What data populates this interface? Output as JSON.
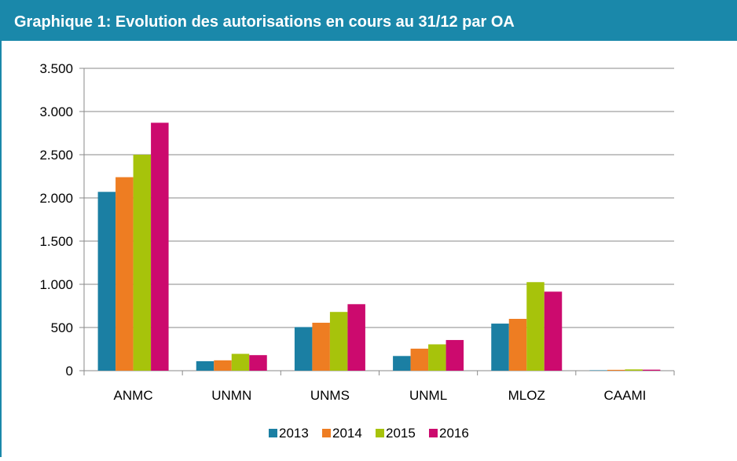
{
  "chart_data": {
    "type": "bar",
    "title": "Graphique 1: Evolution des autorisations en cours au 31/12 par OA",
    "categories": [
      "ANMC",
      "UNMN",
      "UNMS",
      "UNML",
      "MLOZ",
      "CAAMI"
    ],
    "series": [
      {
        "name": "2013",
        "color": "#1b7fa3",
        "values": [
          2070,
          110,
          505,
          170,
          545,
          5
        ]
      },
      {
        "name": "2014",
        "color": "#ee7d22",
        "values": [
          2240,
          120,
          555,
          255,
          600,
          10
        ]
      },
      {
        "name": "2015",
        "color": "#a7c30b",
        "values": [
          2500,
          195,
          680,
          305,
          1025,
          15
        ]
      },
      {
        "name": "2016",
        "color": "#cc0a6e",
        "values": [
          2870,
          180,
          770,
          355,
          915,
          12
        ]
      }
    ],
    "ylim": [
      0,
      3500
    ],
    "yticks": [
      0,
      500,
      {
        "value": 1000,
        "label": "1.000"
      },
      {
        "value": 1500,
        "label": "1.500"
      },
      {
        "value": 2000,
        "label": "2.000"
      },
      {
        "value": 2500,
        "label": "2.500"
      },
      {
        "value": 3000,
        "label": "3.000"
      },
      {
        "value": 3500,
        "label": "3.500"
      }
    ],
    "grid": true,
    "legend": "bottom"
  }
}
